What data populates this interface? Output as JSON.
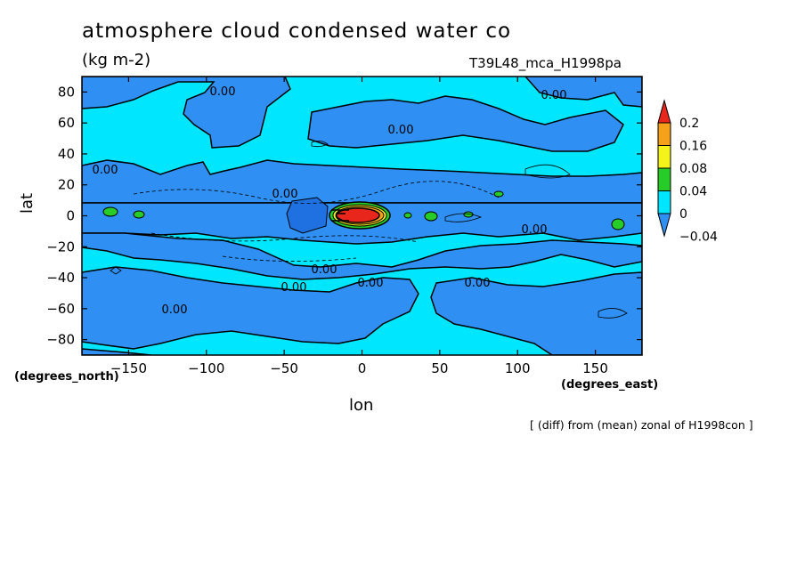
{
  "chart_data": {
    "type": "contour",
    "title": "atmosphere cloud condensed water co",
    "units": "(kg m-2)",
    "run_id": "T39L48_mca_H1998pa",
    "footnote": "[ (diff) from (mean) zonal of H1998con ]",
    "xlabel": "lon",
    "ylabel": "lat",
    "x_units_label": "(degrees_east)",
    "y_units_label": "(degrees_north)",
    "xlim": [
      -180,
      180
    ],
    "ylim": [
      -90,
      90
    ],
    "x_ticks": [
      -150,
      -100,
      -50,
      0,
      50,
      100,
      150
    ],
    "x_tick_labels": [
      "−150",
      "−100",
      "−50",
      "0",
      "50",
      "100",
      "150"
    ],
    "y_ticks": [
      80,
      60,
      40,
      20,
      0,
      -20,
      -40,
      -60,
      -80
    ],
    "y_tick_labels": [
      "80",
      "60",
      "40",
      "20",
      "0",
      "−20",
      "−40",
      "−60",
      "−80"
    ],
    "colorbar": {
      "levels": [
        "0.2",
        "0.16",
        "0.08",
        "0.04",
        "0",
        "−0.04"
      ],
      "colors": [
        "#e8261c",
        "#f5a11a",
        "#f4f41a",
        "#28cc28",
        "#00e6ff",
        "#2f8ff2"
      ]
    },
    "contour_labels": [
      "0.00",
      "0.00",
      "0.00",
      "0.00",
      "0.00",
      "0.00",
      "0.00",
      "0.00",
      "0.00",
      "0.00",
      "0.00"
    ],
    "palette": {
      "background": "#00e6ff",
      "negative": "#2f8ff2",
      "strong_negative": "#1f70e0",
      "positive_low": "#28cc28",
      "positive_mid": "#f4f41a",
      "positive_high": "#f5a11a",
      "max": "#e8261c"
    }
  }
}
